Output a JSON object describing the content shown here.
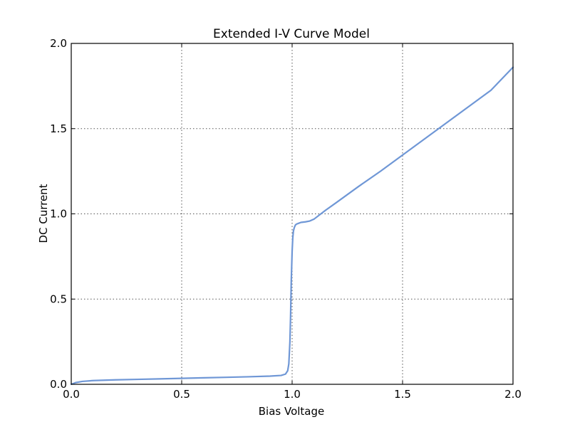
{
  "chart_data": {
    "type": "line",
    "title": "Extended I-V Curve Model",
    "xlabel": "Bias Voltage",
    "ylabel": "DC Current",
    "xlim": [
      0.0,
      2.0
    ],
    "ylim": [
      0.0,
      2.0
    ],
    "xticks": [
      0.0,
      0.5,
      1.0,
      1.5,
      2.0
    ],
    "yticks": [
      0.0,
      0.5,
      1.0,
      1.5,
      2.0
    ],
    "xtick_labels": [
      "0.0",
      "0.5",
      "1.0",
      "1.5",
      "2.0"
    ],
    "ytick_labels": [
      "0.0",
      "0.5",
      "1.0",
      "1.5",
      "2.0"
    ],
    "grid": true,
    "legend": "none",
    "series": [
      {
        "color": "#6f97d6",
        "x": [
          0.0,
          0.02,
          0.05,
          0.1,
          0.2,
          0.3,
          0.4,
          0.5,
          0.6,
          0.7,
          0.8,
          0.9,
          0.95,
          0.97,
          0.98,
          0.985,
          0.99,
          0.993,
          0.996,
          1.0,
          1.003,
          1.006,
          1.01,
          1.015,
          1.02,
          1.03,
          1.04,
          1.06,
          1.08,
          1.1,
          1.15,
          1.2,
          1.3,
          1.4,
          1.5,
          1.6,
          1.7,
          1.8,
          1.9,
          2.0
        ],
        "y": [
          0.0,
          0.01,
          0.017,
          0.022,
          0.026,
          0.029,
          0.032,
          0.035,
          0.038,
          0.041,
          0.044,
          0.048,
          0.052,
          0.06,
          0.08,
          0.12,
          0.25,
          0.4,
          0.6,
          0.78,
          0.86,
          0.9,
          0.92,
          0.935,
          0.94,
          0.945,
          0.95,
          0.953,
          0.958,
          0.97,
          1.02,
          1.066,
          1.16,
          1.25,
          1.345,
          1.44,
          1.535,
          1.63,
          1.725,
          1.86
        ]
      }
    ]
  }
}
